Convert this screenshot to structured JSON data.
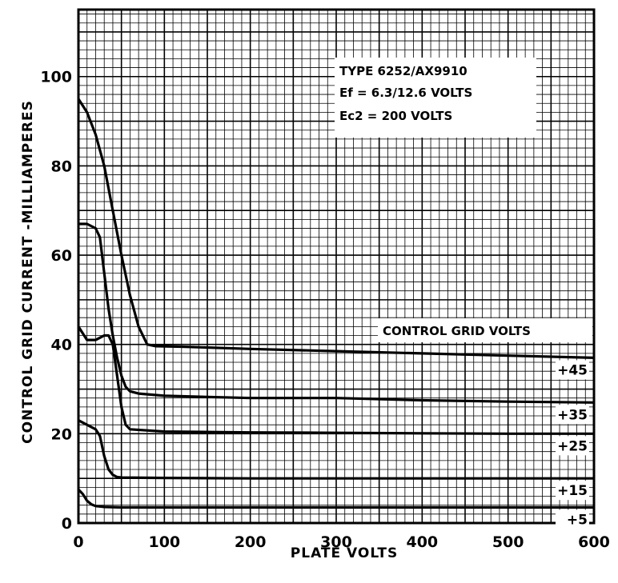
{
  "chart_data": {
    "type": "line",
    "title": "",
    "xlabel": "PLATE VOLTS",
    "ylabel": "CONTROL GRID CURRENT -MILLIAMPERES",
    "xlim": [
      0,
      600
    ],
    "ylim": [
      0,
      115
    ],
    "x_ticks": [
      "0",
      "100",
      "200",
      "300",
      "400",
      "500",
      "600"
    ],
    "y_ticks": [
      "0",
      "20",
      "40",
      "60",
      "80",
      "100"
    ],
    "grid": true,
    "annotation": {
      "line1": "TYPE 6252/AX9910",
      "line2": "Ef = 6.3/12.6 VOLTS",
      "line3": "Ec2 = 200 VOLTS"
    },
    "legend_title": "CONTROL GRID VOLTS",
    "series": [
      {
        "name": "+45",
        "x": [
          0,
          10,
          20,
          30,
          40,
          50,
          60,
          70,
          80,
          90,
          120,
          200,
          300,
          400,
          500,
          600
        ],
        "y": [
          95,
          92,
          87,
          80,
          70,
          60,
          51,
          44,
          40,
          39.6,
          39.5,
          39,
          38.5,
          38,
          37.5,
          37
        ]
      },
      {
        "name": "+35",
        "x": [
          0,
          10,
          20,
          25,
          30,
          35,
          40,
          45,
          50,
          55,
          60,
          70,
          100,
          200,
          300,
          400,
          500,
          600
        ],
        "y": [
          67,
          67,
          66,
          64,
          56,
          48,
          42,
          37,
          33,
          30.5,
          29.5,
          29,
          28.5,
          28,
          28,
          27.5,
          27.2,
          27
        ]
      },
      {
        "name": "+25",
        "x": [
          0,
          10,
          20,
          30,
          35,
          40,
          45,
          50,
          55,
          60,
          100,
          200,
          300,
          400,
          500,
          600
        ],
        "y": [
          44,
          41,
          41,
          42,
          42,
          40,
          33,
          26,
          22,
          21,
          20.5,
          20.3,
          20.2,
          20.1,
          20,
          20
        ]
      },
      {
        "name": "+15",
        "x": [
          0,
          10,
          20,
          25,
          30,
          35,
          40,
          45,
          50,
          100,
          200,
          300,
          400,
          500,
          600
        ],
        "y": [
          23,
          22,
          21,
          19.5,
          15,
          12,
          10.8,
          10.3,
          10.2,
          10.1,
          10,
          10,
          10,
          10,
          10
        ]
      },
      {
        "name": "+5",
        "x": [
          0,
          5,
          10,
          15,
          20,
          30,
          50,
          100,
          200,
          300,
          400,
          500,
          600
        ],
        "y": [
          7.5,
          6.5,
          5,
          4.2,
          3.8,
          3.6,
          3.5,
          3.5,
          3.5,
          3.5,
          3.5,
          3.5,
          3.5
        ]
      }
    ]
  }
}
